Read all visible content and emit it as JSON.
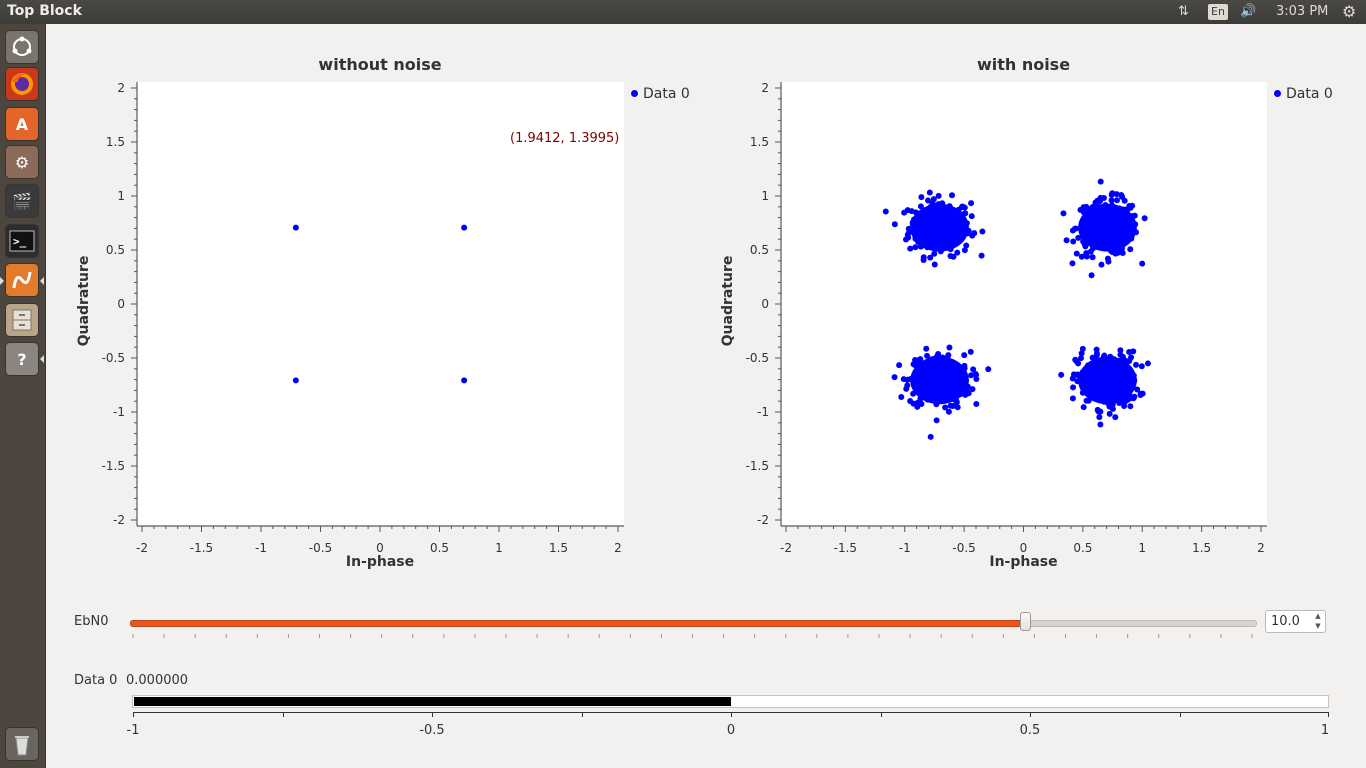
{
  "window": {
    "title": "Top Block",
    "indicators": {
      "network_icon": "network-updown-icon",
      "language": "En",
      "sound_icon": "speaker-icon",
      "time": "3:03 PM",
      "settings_icon": "gear-icon"
    }
  },
  "launcher": {
    "items": [
      {
        "name": "dash",
        "icon": "ubuntu-logo-icon"
      },
      {
        "name": "firefox",
        "icon": "firefox-icon"
      },
      {
        "name": "software-center",
        "icon": "shopping-bag-icon"
      },
      {
        "name": "system-settings",
        "icon": "wrench-gear-icon"
      },
      {
        "name": "video-editor",
        "icon": "clapperboard-icon"
      },
      {
        "name": "terminal",
        "icon": "terminal-icon"
      },
      {
        "name": "gnuradio-companion",
        "icon": "gnuradio-icon"
      },
      {
        "name": "file-manager",
        "icon": "cabinet-icon"
      },
      {
        "name": "unknown-app",
        "icon": "question-icon"
      },
      {
        "name": "trash",
        "icon": "trash-icon"
      }
    ]
  },
  "plots": {
    "left": {
      "title": "without noise",
      "xlabel": "In-phase",
      "ylabel": "Quadrature",
      "legend": "Data 0",
      "tracker_text": "(1.9412, 1.3995)"
    },
    "right": {
      "title": "with noise",
      "xlabel": "In-phase",
      "ylabel": "Quadrature",
      "legend": "Data 0"
    },
    "tick_labels_x": [
      "-2",
      "-1.5",
      "-1",
      "-0.5",
      "0",
      "0.5",
      "1",
      "1.5",
      "2"
    ],
    "tick_labels_y": [
      "2",
      "1.5",
      "1",
      "0.5",
      "0",
      "-0.5",
      "-1",
      "-1.5",
      "-2"
    ]
  },
  "chart_data": [
    {
      "type": "scatter",
      "title": "without noise",
      "xlabel": "In-phase",
      "ylabel": "Quadrature",
      "xlim": [
        -2,
        2
      ],
      "ylim": [
        -2,
        2
      ],
      "legend": "top-right",
      "series": [
        {
          "name": "Data 0",
          "color": "#0000ff",
          "points": [
            [
              -0.707,
              0.707
            ],
            [
              0.707,
              0.707
            ],
            [
              -0.707,
              -0.707
            ],
            [
              0.707,
              -0.707
            ]
          ]
        }
      ]
    },
    {
      "type": "scatter",
      "title": "with noise",
      "xlabel": "In-phase",
      "ylabel": "Quadrature",
      "xlim": [
        -2,
        2
      ],
      "ylim": [
        -2,
        2
      ],
      "legend": "top-right",
      "series": [
        {
          "name": "Data 0",
          "color": "#0000ff",
          "clusters": [
            {
              "center": [
                -0.707,
                0.707
              ],
              "spread": 0.13
            },
            {
              "center": [
                0.707,
                0.707
              ],
              "spread": 0.13
            },
            {
              "center": [
                -0.707,
                -0.707
              ],
              "spread": 0.13
            },
            {
              "center": [
                0.707,
                -0.707
              ],
              "spread": 0.13
            }
          ]
        }
      ]
    }
  ],
  "controls": {
    "ebn0": {
      "label": "EbN0",
      "value": 10.0,
      "display": "10.0",
      "level": 0.796
    },
    "number_sink": {
      "label": "Data 0",
      "value_text": "0.000000",
      "value": 0.0,
      "range": [
        -1,
        1
      ],
      "tick_labels": [
        "-1",
        "-0.5",
        "0",
        "0.5",
        "1"
      ]
    }
  }
}
